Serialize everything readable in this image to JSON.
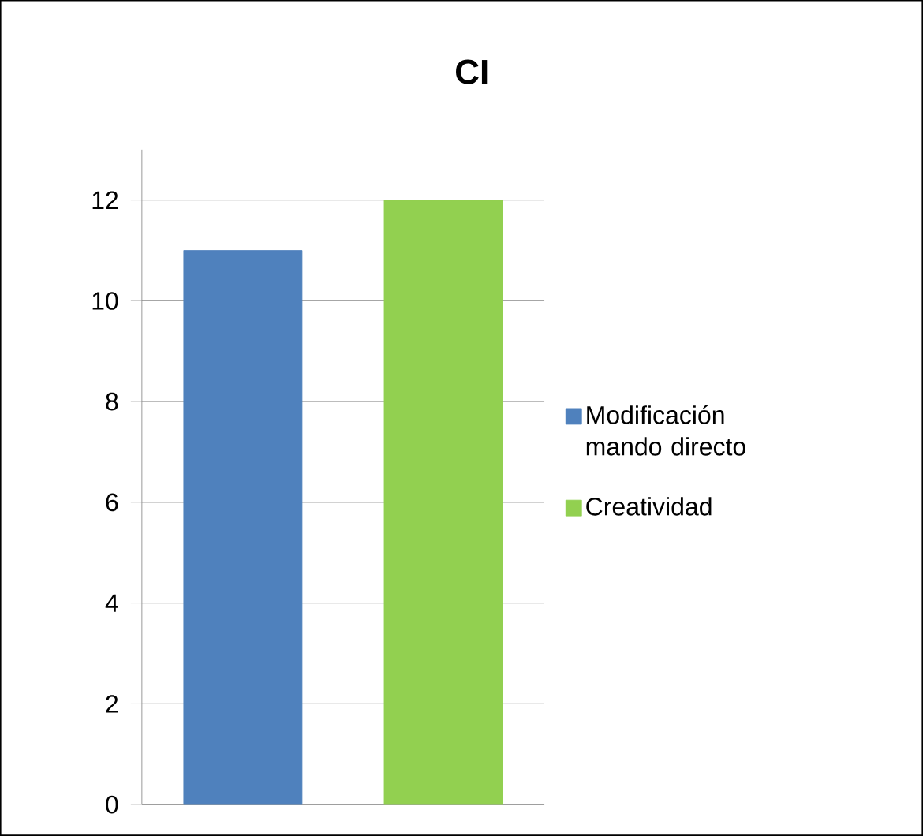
{
  "chart_data": {
    "type": "bar",
    "title": "CI",
    "categories": [
      null
    ],
    "series": [
      {
        "name": "Modificación mando directo",
        "color": "#4f81bd",
        "values": [
          11
        ]
      },
      {
        "name": "Creatividad",
        "color": "#92d050",
        "values": [
          12
        ]
      }
    ],
    "ylim": [
      0,
      13
    ],
    "yticks": [
      0,
      2,
      4,
      6,
      8,
      10,
      12
    ],
    "grid": "y",
    "legend": "right",
    "tick_labels": "y"
  }
}
